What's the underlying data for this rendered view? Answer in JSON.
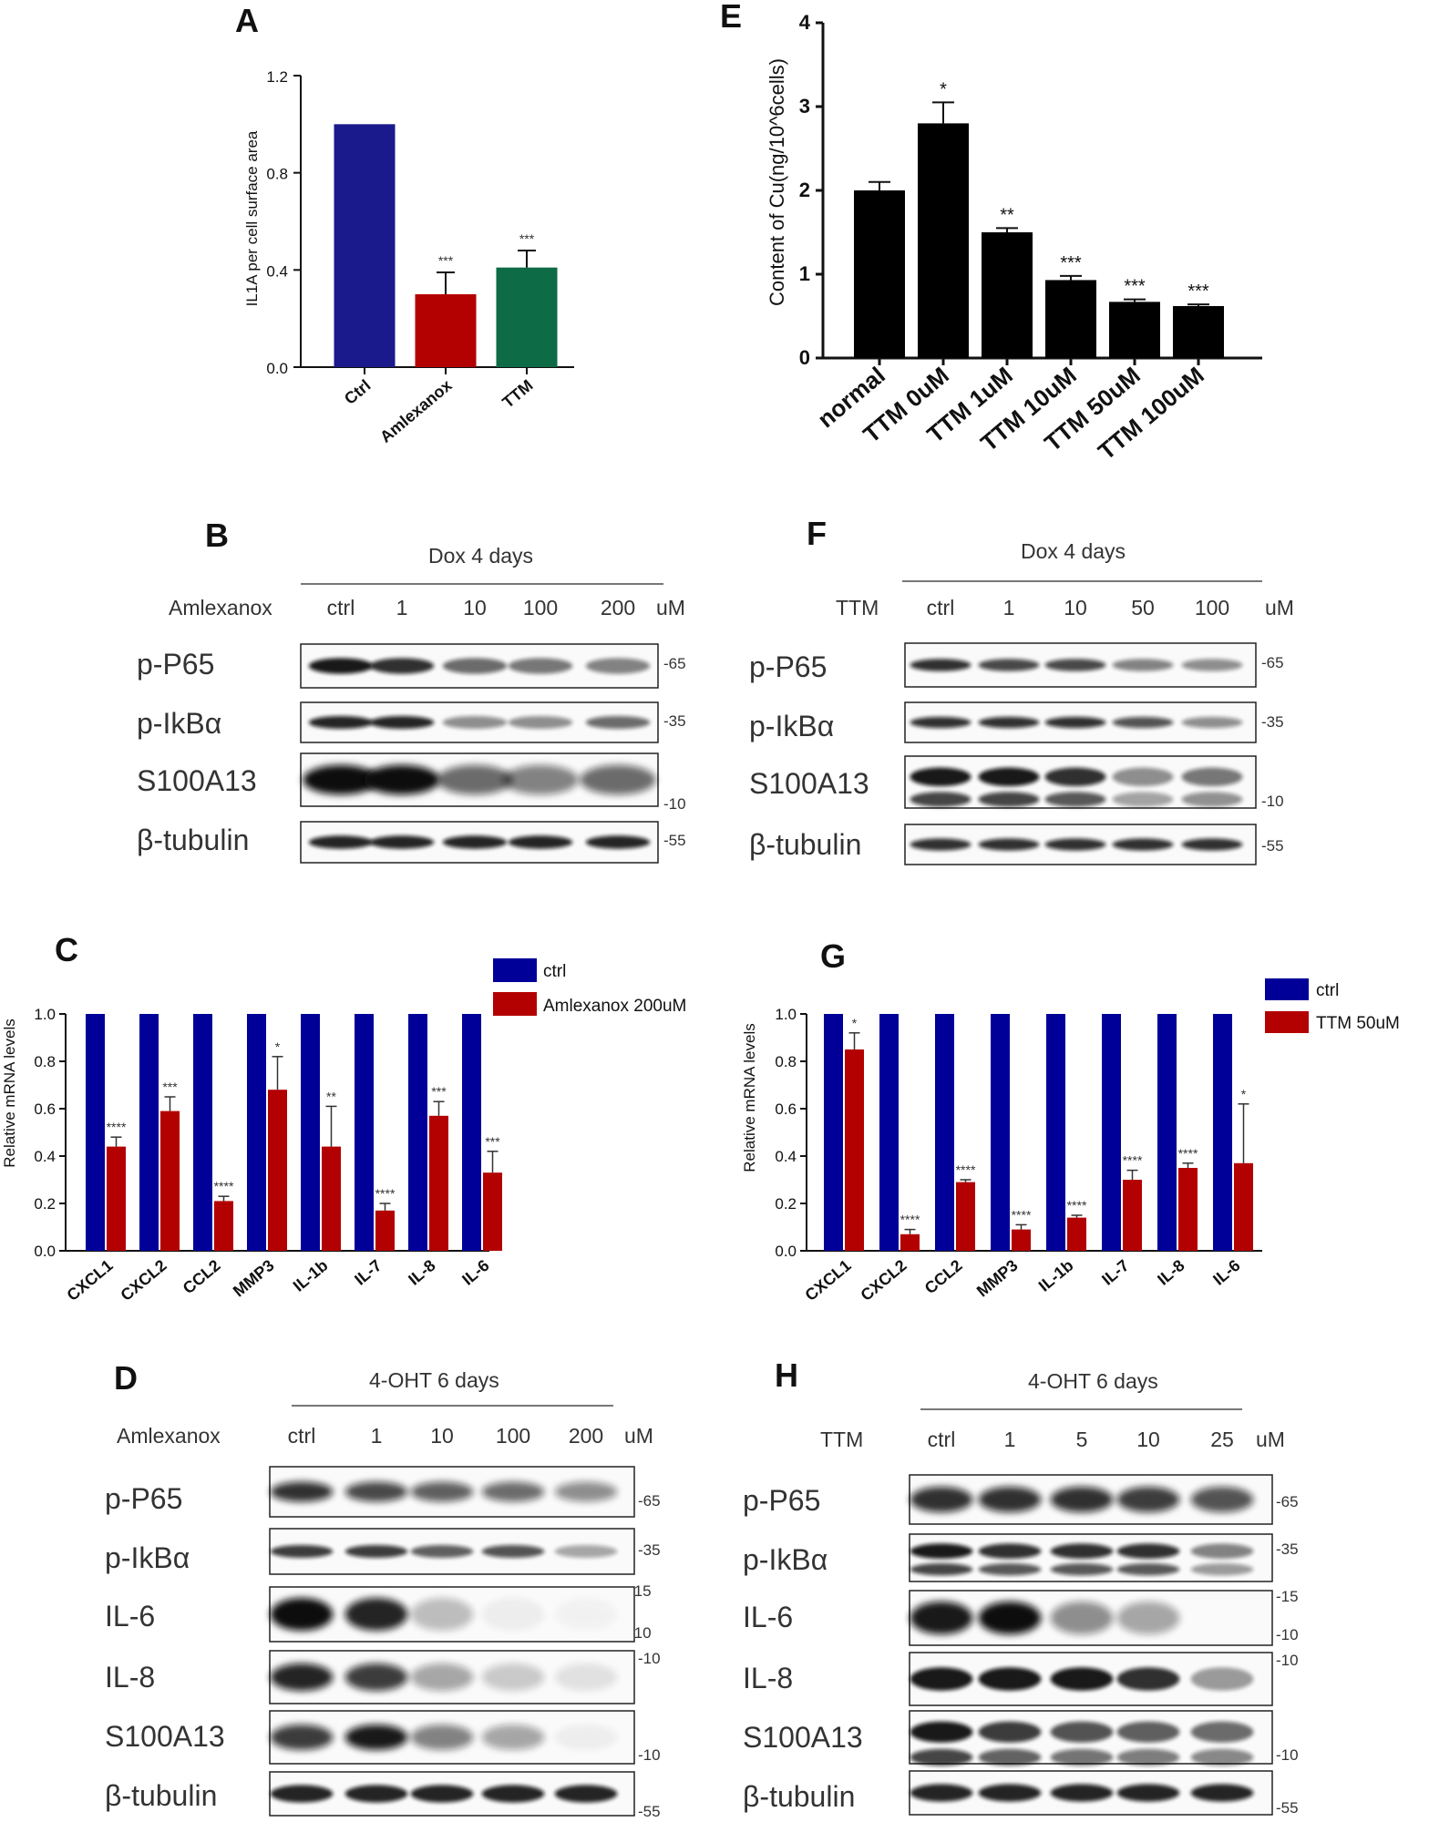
{
  "panels": {
    "A": {
      "label": "A",
      "chart_data": {
        "type": "bar",
        "ylabel": "IL1A per cell surface area",
        "ylim": [
          0,
          1.2
        ],
        "yticks": [
          "0.0",
          "0.4",
          "0.8",
          "1.2"
        ],
        "categories": [
          "Ctrl",
          "Amlexanox",
          "TTM"
        ],
        "values": [
          1.0,
          0.3,
          0.41
        ],
        "errors": [
          0,
          0.09,
          0.07
        ],
        "significance": [
          "",
          "***",
          "***"
        ],
        "colors": [
          "#1a1a8c",
          "#b30000",
          "#0d6b45"
        ]
      }
    },
    "E": {
      "label": "E",
      "chart_data": {
        "type": "bar",
        "ylabel": "Content of Cu(ng/10^6cells)",
        "ylim": [
          0,
          4
        ],
        "yticks": [
          "0",
          "1",
          "2",
          "3",
          "4"
        ],
        "categories": [
          "normal",
          "TTM 0uM",
          "TTM 1uM",
          "TTM 10uM",
          "TTM 50uM",
          "TTM 100uM"
        ],
        "values": [
          2.0,
          2.8,
          1.5,
          0.93,
          0.67,
          0.62
        ],
        "errors": [
          0.1,
          0.25,
          0.05,
          0.05,
          0.03,
          0.02
        ],
        "significance": [
          "",
          "*",
          "**",
          "***",
          "***",
          "***"
        ],
        "color": "#000000"
      }
    },
    "C": {
      "label": "C",
      "chart_data": {
        "type": "bar",
        "ylabel": "Relative mRNA levels",
        "ylim": [
          0,
          1.0
        ],
        "yticks": [
          "0.0",
          "0.2",
          "0.4",
          "0.6",
          "0.8",
          "1.0"
        ],
        "categories": [
          "CXCL1",
          "CXCL2",
          "CCL2",
          "MMP3",
          "IL-1b",
          "IL-7",
          "IL-8",
          "IL-6"
        ],
        "series": [
          {
            "name": "ctrl",
            "color": "#000099",
            "values": [
              1,
              1,
              1,
              1,
              1,
              1,
              1,
              1
            ]
          },
          {
            "name": "Amlexanox 200uM",
            "color": "#b30000",
            "values": [
              0.44,
              0.59,
              0.21,
              0.68,
              0.44,
              0.17,
              0.57,
              0.33
            ],
            "errors": [
              0.04,
              0.06,
              0.02,
              0.14,
              0.17,
              0.03,
              0.06,
              0.09
            ],
            "significance": [
              "****",
              "***",
              "****",
              "*",
              "**",
              "****",
              "***",
              "***"
            ]
          }
        ]
      }
    },
    "G": {
      "label": "G",
      "chart_data": {
        "type": "bar",
        "ylabel": "Relative mRNA levels",
        "ylim": [
          0,
          1.0
        ],
        "yticks": [
          "0.0",
          "0.2",
          "0.4",
          "0.6",
          "0.8",
          "1.0"
        ],
        "categories": [
          "CXCL1",
          "CXCL2",
          "CCL2",
          "MMP3",
          "IL-1b",
          "IL-7",
          "IL-8",
          "IL-6"
        ],
        "series": [
          {
            "name": "ctrl",
            "color": "#000099",
            "values": [
              1,
              1,
              1,
              1,
              1,
              1,
              1,
              1
            ]
          },
          {
            "name": "TTM 50uM",
            "color": "#b30000",
            "values": [
              0.85,
              0.07,
              0.29,
              0.09,
              0.14,
              0.3,
              0.35,
              0.37
            ],
            "errors": [
              0.07,
              0.02,
              0.01,
              0.02,
              0.01,
              0.04,
              0.02,
              0.25
            ],
            "significance": [
              "*",
              "****",
              "****",
              "****",
              "****",
              "****",
              "****",
              "*"
            ]
          }
        ]
      }
    },
    "B": {
      "label": "B",
      "header": "Dox   4 days",
      "drug": "Amlexanox",
      "doses": [
        "ctrl",
        "1",
        "10",
        "100",
        "200"
      ],
      "unit": "uM",
      "rows": [
        {
          "name": "p-P65",
          "mw": "-65"
        },
        {
          "name": "p-IkBα",
          "mw": "-35"
        },
        {
          "name": "S100A13",
          "mw": "-10"
        },
        {
          "name": "β-tubulin",
          "mw": "-55"
        }
      ]
    },
    "F": {
      "label": "F",
      "header": "Dox   4 days",
      "drug": "TTM",
      "doses": [
        "ctrl",
        "1",
        "10",
        "50",
        "100"
      ],
      "unit": "uM",
      "rows": [
        {
          "name": "p-P65",
          "mw": "-65"
        },
        {
          "name": "p-IkBα",
          "mw": "-35"
        },
        {
          "name": "S100A13",
          "mw": "-10"
        },
        {
          "name": "β-tubulin",
          "mw": "-55"
        }
      ]
    },
    "D": {
      "label": "D",
      "header": "4-OHT   6 days",
      "drug": "Amlexanox",
      "doses": [
        "ctrl",
        "1",
        "10",
        "100",
        "200"
      ],
      "unit": "uM",
      "rows": [
        {
          "name": "p-P65",
          "mw": [
            "-65"
          ]
        },
        {
          "name": "p-IkBα",
          "mw": [
            "-35"
          ]
        },
        {
          "name": "IL-6",
          "mw": [
            "-15",
            "-10"
          ]
        },
        {
          "name": "IL-8",
          "mw": [
            "-10"
          ]
        },
        {
          "name": "S100A13",
          "mw": [
            "-10"
          ]
        },
        {
          "name": "β-tubulin",
          "mw": [
            "-55"
          ]
        }
      ]
    },
    "H": {
      "label": "H",
      "header": "4-OHT   6 days",
      "drug": "TTM",
      "doses": [
        "ctrl",
        "1",
        "5",
        "10",
        "25"
      ],
      "unit": "uM",
      "rows": [
        {
          "name": "p-P65",
          "mw": [
            "-65"
          ]
        },
        {
          "name": "p-IkBα",
          "mw": [
            "-35"
          ]
        },
        {
          "name": "IL-6",
          "mw": [
            "-15",
            "-10"
          ]
        },
        {
          "name": "IL-8",
          "mw": [
            "-10"
          ]
        },
        {
          "name": "S100A13",
          "mw": [
            "-10"
          ]
        },
        {
          "name": "β-tubulin",
          "mw": [
            "-55"
          ]
        }
      ]
    }
  }
}
